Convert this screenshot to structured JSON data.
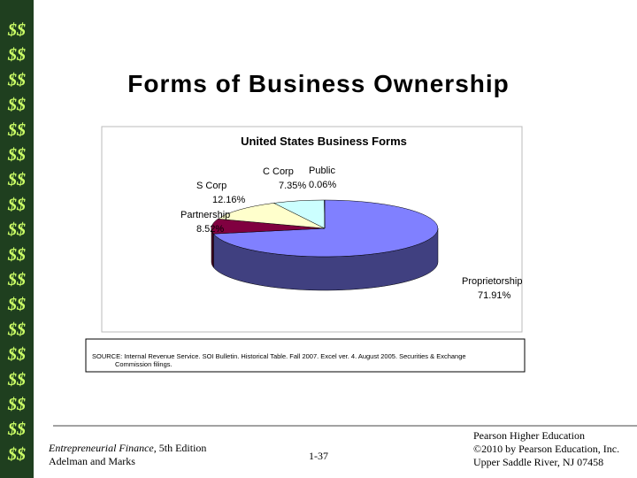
{
  "decoration": {
    "symbol": "$$"
  },
  "slide_title": "Forms of Business Ownership",
  "chart_data": {
    "type": "pie",
    "title": "United States Business Forms",
    "categories": [
      "Proprietorship",
      "Partnership",
      "S Corp",
      "C Corp",
      "Public"
    ],
    "values": [
      71.91,
      8.52,
      12.16,
      7.35,
      0.06
    ],
    "value_labels": [
      "71.91%",
      "8.52%",
      "12.16%",
      "7.35%",
      "0.06%"
    ],
    "colors": [
      "#8080ff",
      "#800040",
      "#ffffcc",
      "#ccffff",
      "#9999ff"
    ]
  },
  "source": {
    "lines": [
      "SOURCE: Internal Revenue Service. SOI Bulletin. Historical Table. Fall 2007. Excel ver. 4. August 2005. Securities & Exchange",
      "Commission filings."
    ]
  },
  "footer": {
    "book": "Entrepreneurial Finance",
    "edition": ", 5th Edition",
    "authors": "Adelman and Marks",
    "page": "1-37",
    "publisher": [
      "Pearson Higher Education",
      "©2010 by Pearson Education, Inc.",
      "Upper Saddle River, NJ 07458"
    ]
  }
}
